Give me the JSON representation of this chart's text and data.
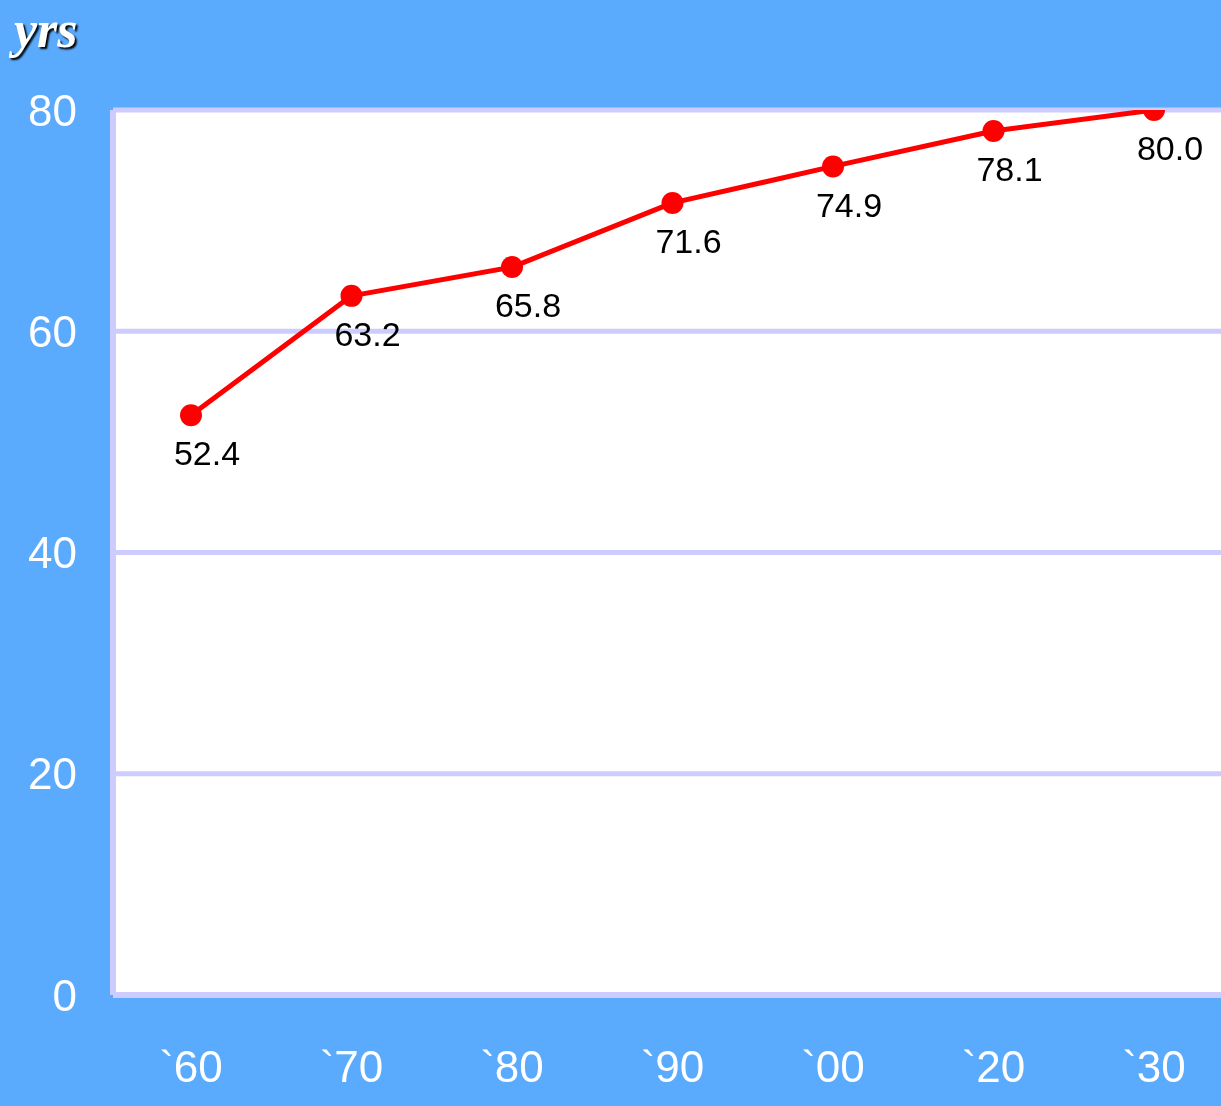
{
  "chart_data": {
    "type": "line",
    "ylabel": "yrs",
    "categories": [
      "`60",
      "`70",
      "`80",
      "`90",
      "`00",
      "`20",
      "`30"
    ],
    "series": [
      {
        "color": "#ff0000",
        "values": [
          52.4,
          63.2,
          65.8,
          71.6,
          74.9,
          78.1,
          80.0
        ],
        "value_labels": [
          "52.4",
          "63.2",
          "65.8",
          "71.6",
          "74.9",
          "78.1",
          "80.0"
        ]
      }
    ],
    "ylim": [
      0,
      80
    ],
    "yticks": [
      0,
      20,
      40,
      60,
      80
    ],
    "grid": "y",
    "marker": "circle"
  }
}
